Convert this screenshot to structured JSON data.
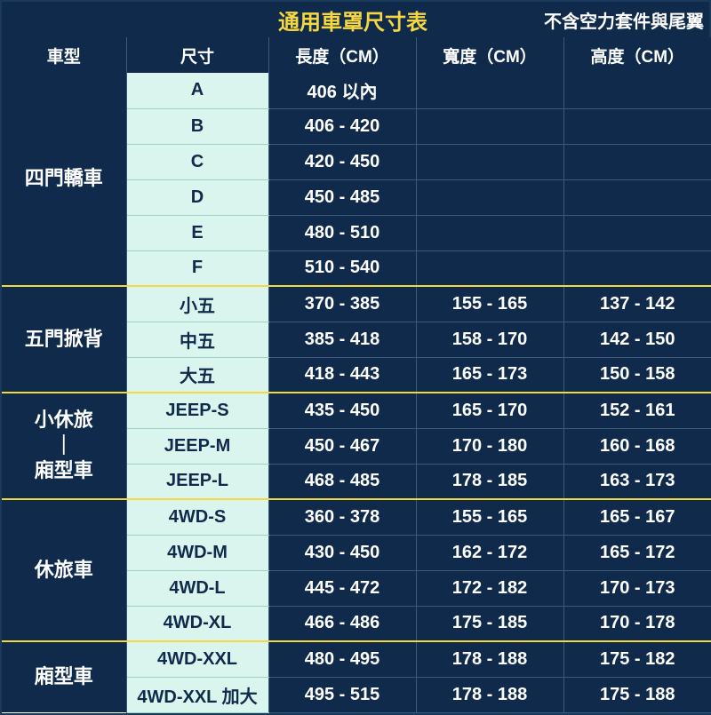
{
  "title": "通用車罩尺寸表",
  "note": "不含空力套件與尾翼",
  "columns": [
    "車型",
    "尺寸",
    "長度（CM）",
    "寬度（CM）",
    "高度（CM）"
  ],
  "groups": [
    {
      "category": "四門轎車",
      "rows": [
        {
          "size": "A",
          "length": "406 以內",
          "width": "",
          "height": ""
        },
        {
          "size": "B",
          "length": "406 - 420",
          "width": "",
          "height": ""
        },
        {
          "size": "C",
          "length": "420 - 450",
          "width": "",
          "height": ""
        },
        {
          "size": "D",
          "length": "450 - 485",
          "width": "",
          "height": ""
        },
        {
          "size": "E",
          "length": "480 - 510",
          "width": "",
          "height": ""
        },
        {
          "size": "F",
          "length": "510 - 540",
          "width": "",
          "height": ""
        }
      ]
    },
    {
      "category": "五門掀背",
      "rows": [
        {
          "size": "小五",
          "length": "370 - 385",
          "width": "155 - 165",
          "height": "137 - 142"
        },
        {
          "size": "中五",
          "length": "385 - 418",
          "width": "158 - 170",
          "height": "142 - 150"
        },
        {
          "size": "大五",
          "length": "418 - 443",
          "width": "165 - 173",
          "height": "150 - 158"
        }
      ]
    },
    {
      "category": "小休旅\n｜\n廂型車",
      "rows": [
        {
          "size": "JEEP-S",
          "length": "435 - 450",
          "width": "165 - 170",
          "height": "152 - 161"
        },
        {
          "size": "JEEP-M",
          "length": "450 - 467",
          "width": "170 - 180",
          "height": "160 - 168"
        },
        {
          "size": "JEEP-L",
          "length": "468 - 485",
          "width": "178 - 185",
          "height": "163 - 173"
        }
      ]
    },
    {
      "category": "休旅車",
      "rows": [
        {
          "size": "4WD-S",
          "length": "360 - 378",
          "width": "155 - 165",
          "height": "165 - 167"
        },
        {
          "size": "4WD-M",
          "length": "430 - 450",
          "width": "162 - 172",
          "height": "165 - 172"
        },
        {
          "size": "4WD-L",
          "length": "445 - 472",
          "width": "172 - 182",
          "height": "170 - 173"
        },
        {
          "size": "4WD-XL",
          "length": "466 - 486",
          "width": "175 - 185",
          "height": "170 - 178"
        }
      ]
    },
    {
      "category": "廂型車",
      "rows": [
        {
          "size": "4WD-XXL",
          "length": "480 - 495",
          "width": "178 - 188",
          "height": "175 - 182"
        },
        {
          "size": "4WD-XXL 加大",
          "length": "495 - 515",
          "width": "178 - 188",
          "height": "175 - 188"
        }
      ]
    }
  ],
  "style": {
    "header_bg": "#0f2a4a",
    "header_fg": "#ffffff",
    "title_fg": "#f5d742",
    "size_bg": "#d9f5ee",
    "size_fg": "#0f2a4a",
    "val_bg": "#0f2a4a",
    "val_fg": "#ffffff",
    "group_divider": "#f5d742",
    "cell_border": "#3a5a7a",
    "size_row_border": "#9ad4c4",
    "font_size_title": 24,
    "font_size_header": 19,
    "font_size_body": 20,
    "font_size_category": 22
  }
}
